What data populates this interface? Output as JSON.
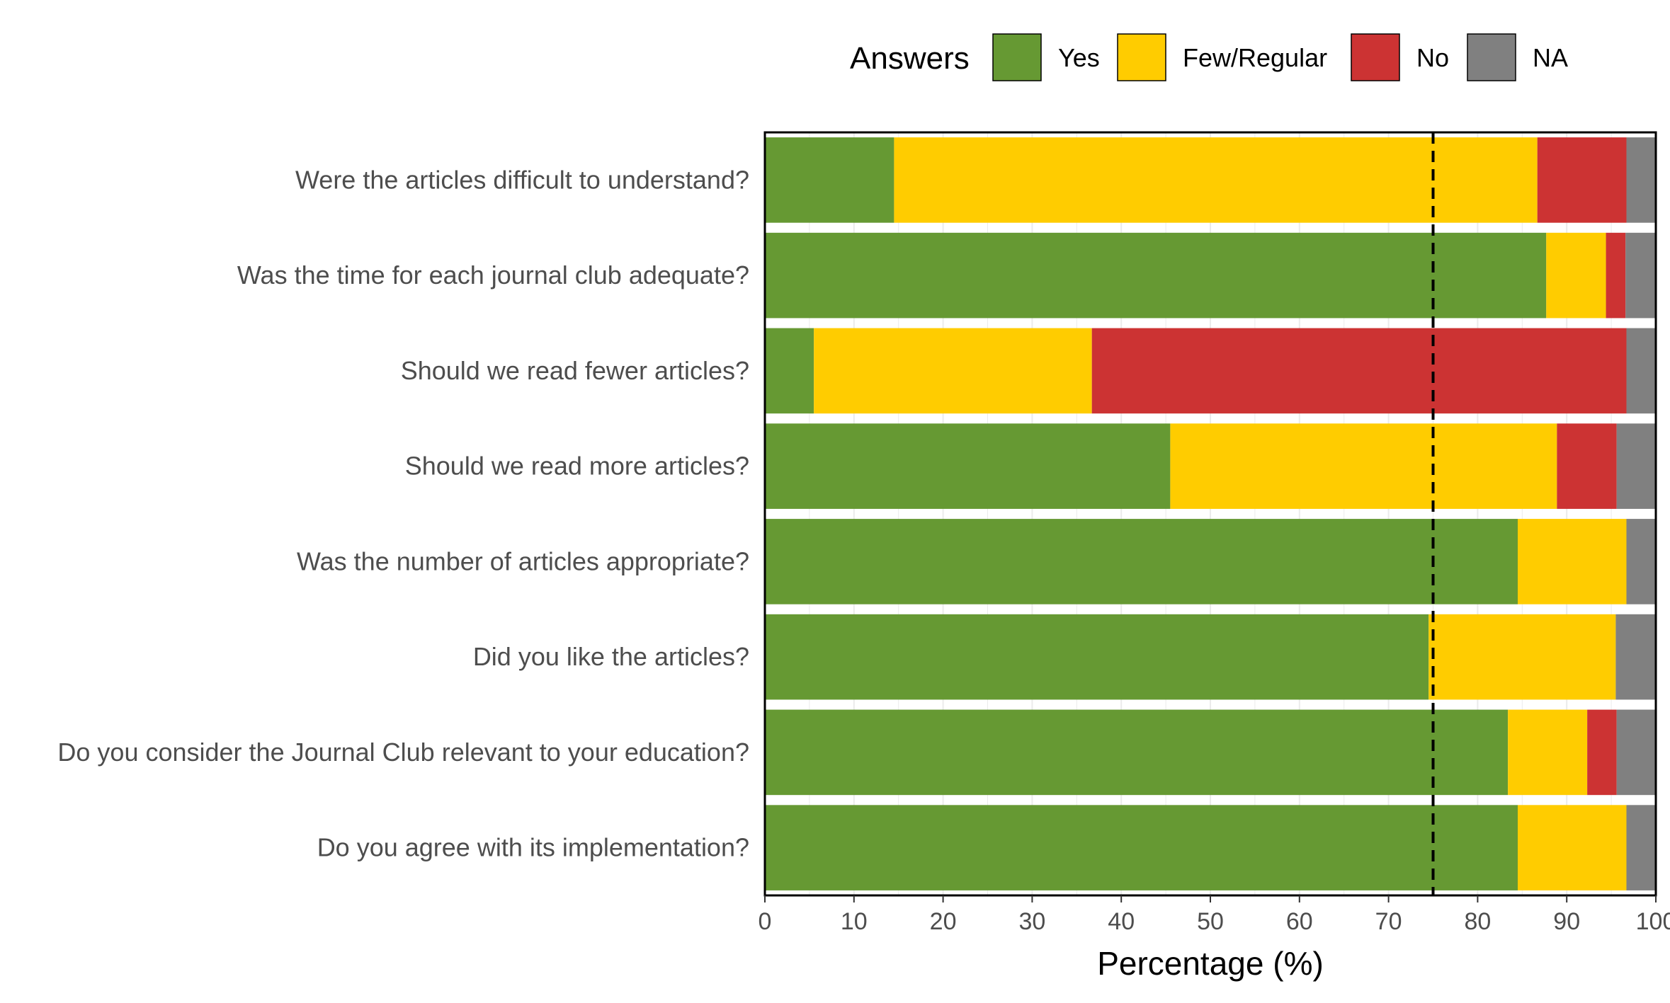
{
  "chart_data": {
    "type": "bar",
    "orientation": "horizontal",
    "stacked": true,
    "categories": [
      "Were the articles difficult to understand?",
      "Was the time for each journal club adequate?",
      "Should we read fewer articles?",
      "Should we read more articles?",
      "Was the number of articles appropriate?",
      "Did you like the articles?",
      "Do you consider the Journal Club relevant to your education?",
      "Do you agree with its implementation?"
    ],
    "series": [
      {
        "name": "Yes",
        "color": "#669933",
        "values": [
          14.5,
          87.7,
          5.5,
          45.5,
          84.5,
          74.5,
          83.4,
          84.5
        ]
      },
      {
        "name": "Few/Regular",
        "color": "#ffcc00",
        "values": [
          72.2,
          6.7,
          31.2,
          43.4,
          12.2,
          21.0,
          8.9,
          12.2
        ]
      },
      {
        "name": "No",
        "color": "#cc3333",
        "values": [
          10.0,
          2.2,
          60.0,
          6.7,
          0,
          0,
          3.3,
          0
        ]
      },
      {
        "name": "NA",
        "color": "#808080",
        "values": [
          3.3,
          3.4,
          3.3,
          4.4,
          3.3,
          4.5,
          4.4,
          3.3
        ]
      }
    ],
    "xlabel": "Percentage (%)",
    "xlim": [
      0,
      100
    ],
    "xticks": [
      "0",
      "10",
      "20",
      "30",
      "40",
      "50",
      "60",
      "70",
      "80",
      "90",
      "100"
    ],
    "reference_line": {
      "x": 75,
      "style": "dashed"
    },
    "legend": {
      "title": "Answers",
      "position": "top"
    },
    "grid": true
  }
}
